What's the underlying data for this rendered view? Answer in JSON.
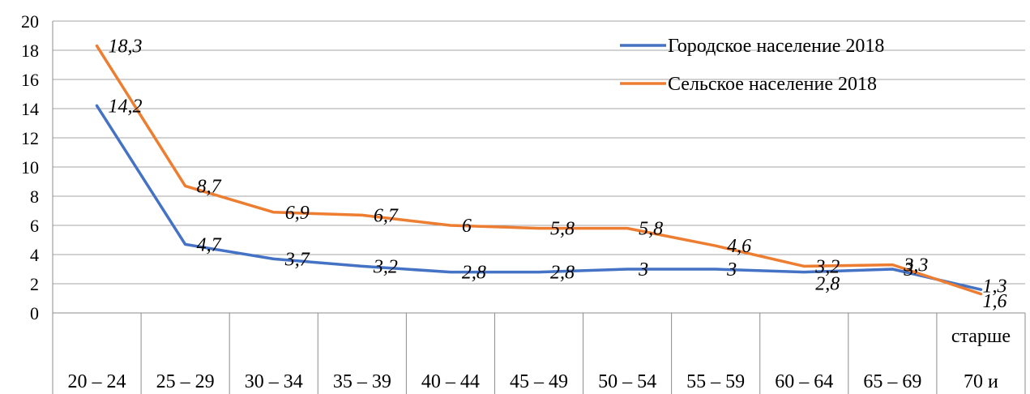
{
  "chart_data": {
    "type": "line",
    "categories": [
      [
        "20 – 24"
      ],
      [
        "25 – 29"
      ],
      [
        "30 – 34"
      ],
      [
        "35 – 39"
      ],
      [
        "40 – 44"
      ],
      [
        "45 – 49"
      ],
      [
        "50 – 54"
      ],
      [
        "55 – 59"
      ],
      [
        "60 – 64"
      ],
      [
        "65 – 69"
      ],
      [
        "старше",
        "70 и"
      ]
    ],
    "ylim": [
      0,
      20
    ],
    "yticks": [
      0,
      2,
      4,
      6,
      8,
      10,
      12,
      14,
      16,
      18,
      20
    ],
    "grid": true,
    "legend_position": "top-right",
    "series": [
      {
        "name": "Городское население 2018",
        "color": "#4472C4",
        "values": [
          14.2,
          4.7,
          3.7,
          3.2,
          2.8,
          2.8,
          3,
          3,
          2.8,
          3,
          1.6
        ],
        "labels": [
          "14,2",
          "4,7",
          "3,7",
          "3,2",
          "2,8",
          "2,8",
          "3",
          "3",
          "2,8",
          "3",
          "1,6"
        ]
      },
      {
        "name": "Сельское население 2018",
        "color": "#ED7D31",
        "values": [
          18.3,
          8.7,
          6.9,
          6.7,
          6,
          5.8,
          5.8,
          4.6,
          3.2,
          3.3,
          1.3
        ],
        "labels": [
          "18,3",
          "8,7",
          "6,9",
          "6,7",
          "6",
          "5,8",
          "5,8",
          "4,6",
          "3,2",
          "3,3",
          "1,3"
        ]
      }
    ]
  }
}
